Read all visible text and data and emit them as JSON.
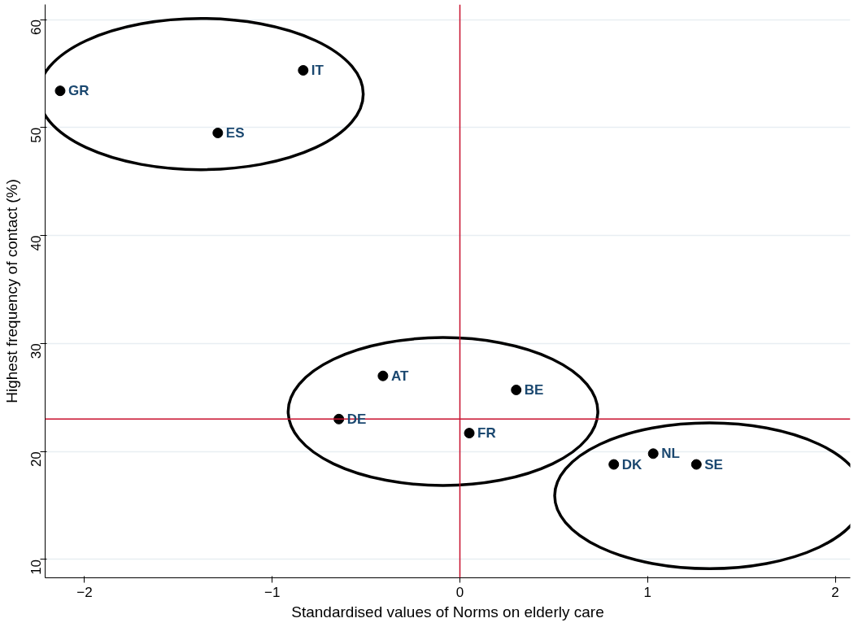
{
  "chart_data": {
    "type": "scatter",
    "xlabel": "Standardised values of Norms on elderly care",
    "ylabel": "Highest frequency of contact (%)",
    "x": [
      -2.13,
      -0.835,
      -1.29,
      -0.41,
      0.3,
      -0.645,
      0.05,
      0.82,
      1.03,
      1.26
    ],
    "values": [
      53.4,
      55.3,
      49.5,
      27.0,
      25.7,
      23.0,
      21.7,
      18.8,
      19.8,
      18.8
    ],
    "value_labels": [
      "GR",
      "IT",
      "ES",
      "AT",
      "BE",
      "DE",
      "FR",
      "DK",
      "NL",
      "SE"
    ],
    "color": "#000000",
    "marker": "circle",
    "xlim": [
      -2.21,
      2.08
    ],
    "ylim": [
      8.3,
      61.4
    ],
    "xticks": [
      -2,
      -1,
      0,
      1,
      2
    ],
    "yticks": [
      10,
      20,
      30,
      40,
      50,
      60
    ],
    "grid": "y",
    "ref_lines": [
      {
        "axis": "x",
        "value": 0,
        "color": "#c8102e"
      },
      {
        "axis": "y",
        "value": 23,
        "color": "#c8102e"
      }
    ]
  }
}
